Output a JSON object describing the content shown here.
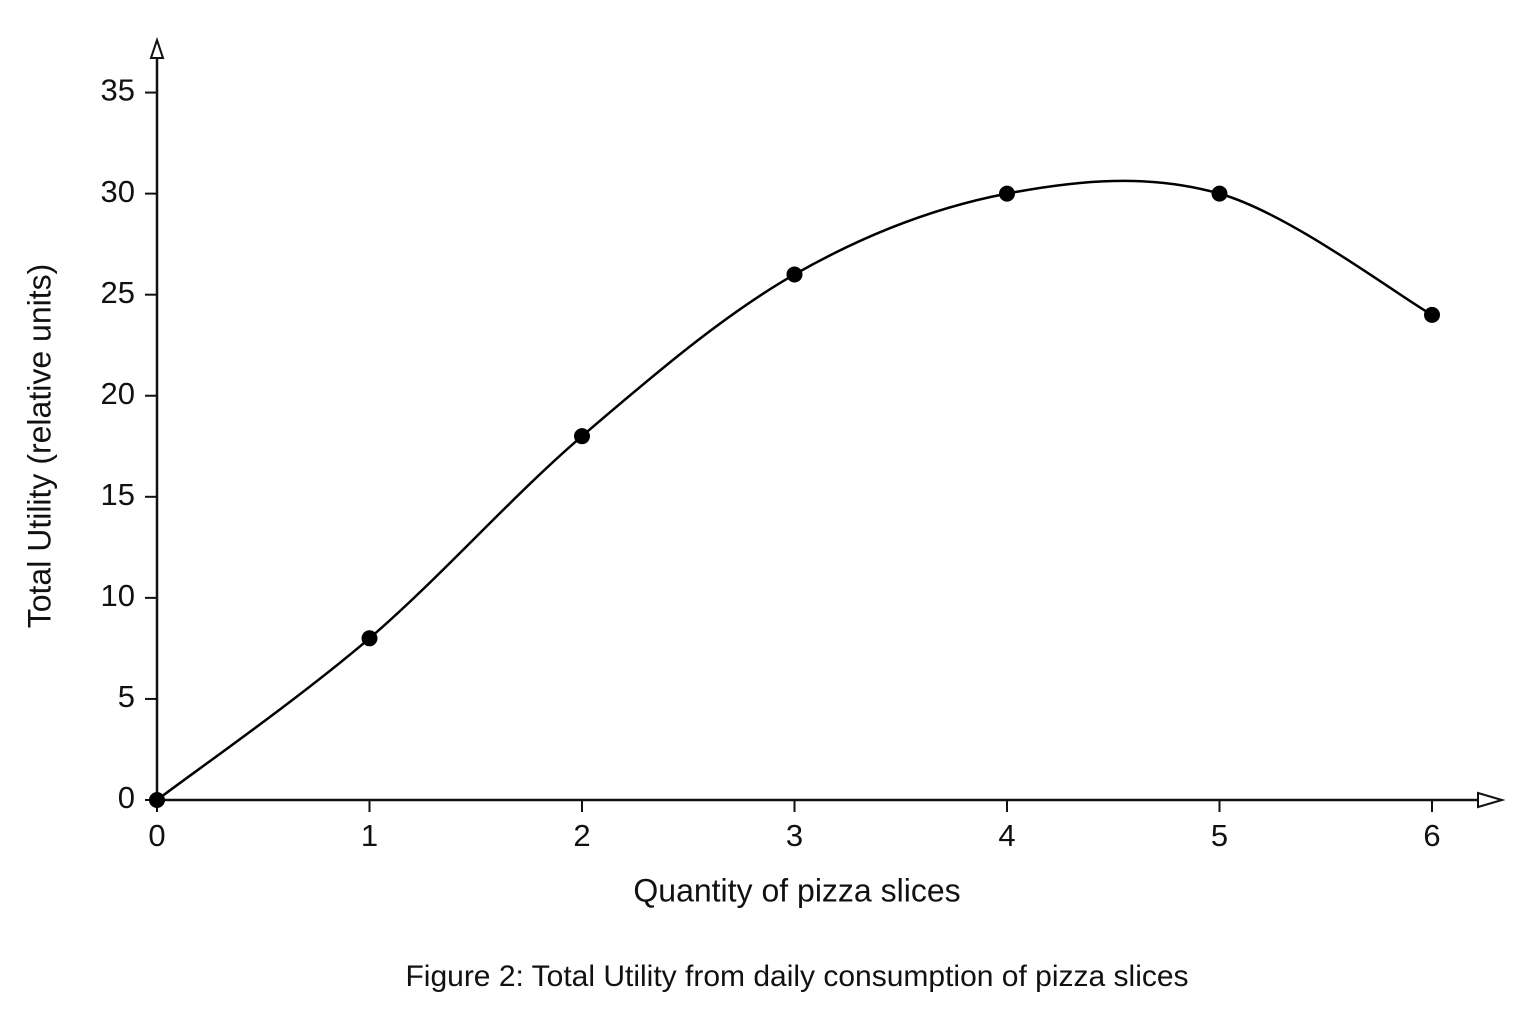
{
  "chart_data": {
    "type": "line",
    "caption": "Figure 2: Total Utility from daily consumption of pizza slices",
    "x_label": "Quantity of pizza slices",
    "y_label": "Total Utility (relative units)",
    "x": [
      0,
      1,
      2,
      3,
      4,
      5,
      6
    ],
    "values": [
      0,
      8,
      18,
      26,
      30,
      30,
      24
    ],
    "color": "#000000",
    "smooth": true,
    "xlim": [
      0,
      6.32
    ],
    "ylim": [
      0,
      37.6
    ],
    "xticks": [
      0,
      1,
      2,
      3,
      4,
      5,
      6
    ],
    "yticks": [
      0,
      5,
      10,
      15,
      20,
      25,
      30,
      35
    ],
    "grid": false
  }
}
